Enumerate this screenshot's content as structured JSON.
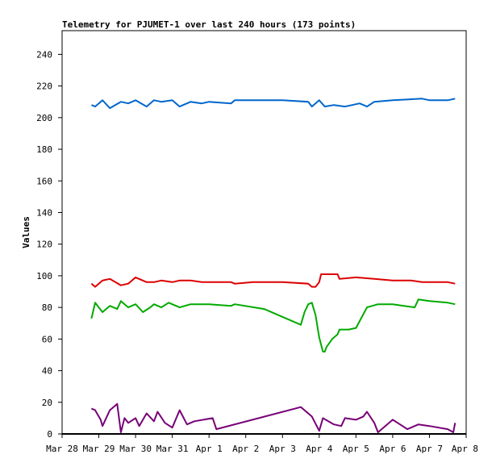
{
  "chart_data": {
    "type": "line",
    "title": "Telemetry for PJUMET-1 over last 240 hours (173 points)",
    "xlabel": "",
    "ylabel": "Values",
    "xlim": [
      0,
      11
    ],
    "ylim": [
      0,
      255
    ],
    "x_ticks": [
      {
        "x": 0,
        "label": "Mar 28"
      },
      {
        "x": 1,
        "label": "Mar 29"
      },
      {
        "x": 2,
        "label": "Mar 30"
      },
      {
        "x": 3,
        "label": "Mar 31"
      },
      {
        "x": 4,
        "label": "Apr 1"
      },
      {
        "x": 5,
        "label": "Apr 2"
      },
      {
        "x": 6,
        "label": "Apr 3"
      },
      {
        "x": 7,
        "label": "Apr 4"
      },
      {
        "x": 8,
        "label": "Apr 5"
      },
      {
        "x": 9,
        "label": "Apr 6"
      },
      {
        "x": 10,
        "label": "Apr 7"
      },
      {
        "x": 11,
        "label": "Apr 8"
      }
    ],
    "y_ticks": [
      0,
      20,
      40,
      60,
      80,
      100,
      120,
      140,
      160,
      180,
      200,
      220,
      240
    ],
    "grid": false,
    "series": [
      {
        "color": "#0066cc",
        "x": [
          0.8,
          0.9,
          1.1,
          1.3,
          1.6,
          1.8,
          2.0,
          2.3,
          2.5,
          2.7,
          3.0,
          3.2,
          3.5,
          3.8,
          4.0,
          4.6,
          4.7,
          5.2,
          6.0,
          6.7,
          6.8,
          7.0,
          7.15,
          7.4,
          7.7,
          7.9,
          8.1,
          8.3,
          8.5,
          9.0,
          9.8,
          10.0,
          10.5,
          10.7
        ],
        "values": [
          208,
          207,
          211,
          206,
          210,
          209,
          211,
          207,
          211,
          210,
          211,
          207,
          210,
          209,
          210,
          209,
          211,
          211,
          211,
          210,
          207,
          211,
          207,
          208,
          207,
          208,
          209,
          207,
          210,
          211,
          212,
          211,
          211,
          212
        ]
      },
      {
        "color": "#dd0000",
        "x": [
          0.8,
          0.9,
          1.1,
          1.3,
          1.6,
          1.8,
          2.0,
          2.3,
          2.5,
          2.7,
          3.0,
          3.2,
          3.5,
          3.8,
          4.0,
          4.6,
          4.7,
          5.2,
          6.0,
          6.7,
          6.8,
          6.9,
          7.0,
          7.05,
          7.5,
          7.55,
          8.0,
          8.5,
          9.0,
          9.5,
          9.8,
          10.0,
          10.5,
          10.7
        ],
        "values": [
          95,
          93,
          97,
          98,
          94,
          95,
          99,
          96,
          96,
          97,
          96,
          97,
          97,
          96,
          96,
          96,
          95,
          96,
          96,
          95,
          93,
          93,
          96,
          101,
          101,
          98,
          99,
          98,
          97,
          97,
          96,
          96,
          96,
          95
        ]
      },
      {
        "color": "#00aa00",
        "x": [
          0.8,
          0.9,
          1.0,
          1.1,
          1.3,
          1.5,
          1.6,
          1.8,
          2.0,
          2.2,
          2.4,
          2.5,
          2.7,
          2.9,
          3.2,
          3.5,
          3.7,
          4.0,
          4.6,
          4.7,
          5.5,
          6.5,
          6.6,
          6.7,
          6.8,
          6.9,
          7.0,
          7.1,
          7.15,
          7.2,
          7.35,
          7.5,
          7.55,
          7.8,
          8.0,
          8.3,
          8.6,
          9.0,
          9.3,
          9.6,
          9.7,
          10.0,
          10.5,
          10.7
        ],
        "values": [
          73,
          83,
          80,
          77,
          81,
          79,
          84,
          80,
          82,
          77,
          80,
          82,
          80,
          83,
          80,
          82,
          82,
          82,
          81,
          82,
          79,
          69,
          77,
          82,
          83,
          75,
          61,
          52,
          52,
          55,
          60,
          63,
          66,
          66,
          67,
          80,
          82,
          82,
          81,
          80,
          85,
          84,
          83,
          82
        ]
      },
      {
        "color": "#770077",
        "x": [
          0.8,
          0.9,
          1.05,
          1.1,
          1.3,
          1.5,
          1.6,
          1.7,
          1.8,
          2.0,
          2.1,
          2.3,
          2.5,
          2.6,
          2.8,
          3.0,
          3.2,
          3.4,
          3.6,
          4.1,
          4.2,
          6.5,
          6.6,
          6.8,
          7.0,
          7.1,
          7.4,
          7.6,
          7.7,
          8.0,
          8.2,
          8.3,
          8.5,
          8.6,
          9.0,
          9.2,
          9.4,
          9.7,
          10.0,
          10.5,
          10.65,
          10.7
        ],
        "values": [
          16,
          15,
          9,
          5,
          15,
          19,
          1,
          10,
          7,
          10,
          5,
          13,
          8,
          14,
          7,
          4,
          15,
          6,
          8,
          10,
          3,
          17,
          15,
          11,
          2,
          10,
          6,
          5,
          10,
          9,
          11,
          14,
          7,
          1,
          9,
          6,
          3,
          6,
          5,
          3,
          1,
          7
        ]
      },
      {
        "color": "#000000",
        "x": [
          0.0,
          11.0
        ],
        "values": [
          0,
          0
        ]
      }
    ]
  }
}
